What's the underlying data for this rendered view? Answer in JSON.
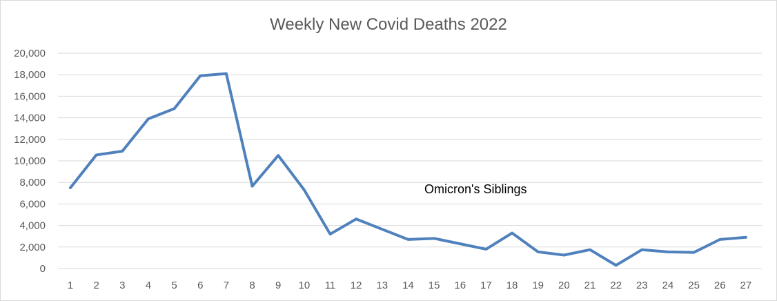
{
  "chart_data": {
    "type": "line",
    "title": "Weekly New Covid Deaths 2022",
    "xlabel": "",
    "ylabel": "",
    "x": [
      1,
      2,
      3,
      4,
      5,
      6,
      7,
      8,
      9,
      10,
      11,
      12,
      13,
      14,
      15,
      16,
      17,
      18,
      19,
      20,
      21,
      22,
      23,
      24,
      25,
      26,
      27
    ],
    "x_tick_labels": [
      "1",
      "2",
      "3",
      "4",
      "5",
      "6",
      "7",
      "8",
      "9",
      "10",
      "11",
      "12",
      "13",
      "14",
      "15",
      "16",
      "17",
      "18",
      "19",
      "20",
      "21",
      "22",
      "23",
      "24",
      "25",
      "26",
      "27"
    ],
    "y_tick_labels": [
      "0",
      "2,000",
      "4,000",
      "6,000",
      "8,000",
      "10,000",
      "12,000",
      "14,000",
      "16,000",
      "18,000",
      "20,000"
    ],
    "y_ticks": [
      0,
      2000,
      4000,
      6000,
      8000,
      10000,
      12000,
      14000,
      16000,
      18000,
      20000
    ],
    "ylim": [
      0,
      20000
    ],
    "grid": true,
    "legend": "none",
    "series": [
      {
        "color": "#4f81bd",
        "values": [
          7500,
          10550,
          10900,
          13900,
          14850,
          17900,
          18100,
          7650,
          10500,
          7300,
          3200,
          4600,
          3650,
          2700,
          2800,
          2300,
          1800,
          3300,
          1550,
          1250,
          1750,
          300,
          1750,
          1550,
          1500,
          2700,
          2900
        ]
      }
    ],
    "annotations": [
      {
        "text": "Omicron's Siblings",
        "x": 16.8,
        "y": 7300
      }
    ]
  },
  "colors": {
    "series": "#4f81bd",
    "grid": "#d9d9d9",
    "axis_text": "#595959",
    "title_text": "#595959",
    "annotation_text": "#000000"
  }
}
